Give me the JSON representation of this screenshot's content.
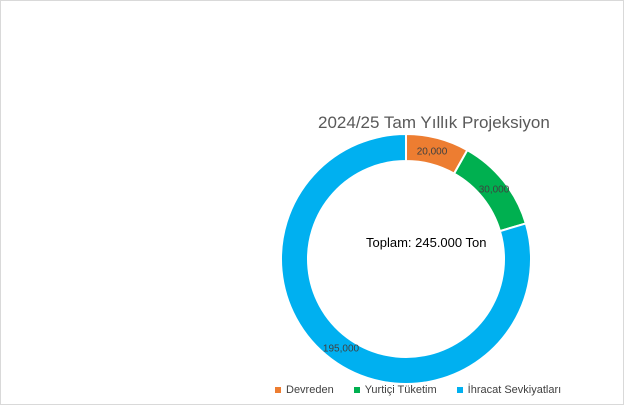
{
  "chart_data": {
    "type": "pie",
    "title": "2024/25 Tam Yıllık Projeksiyon",
    "center_text": "Toplam: 245.000  Ton",
    "categories": [
      "Devreden",
      "Yurtiçi Tüketim",
      "İhracat Sevkiyatları"
    ],
    "values": [
      20000,
      30000,
      195000
    ],
    "data_labels": [
      "20,000",
      "30,000",
      "195,000"
    ],
    "colors": [
      "#ED7D31",
      "#00B050",
      "#00B0F0"
    ],
    "legend_position": "bottom"
  }
}
